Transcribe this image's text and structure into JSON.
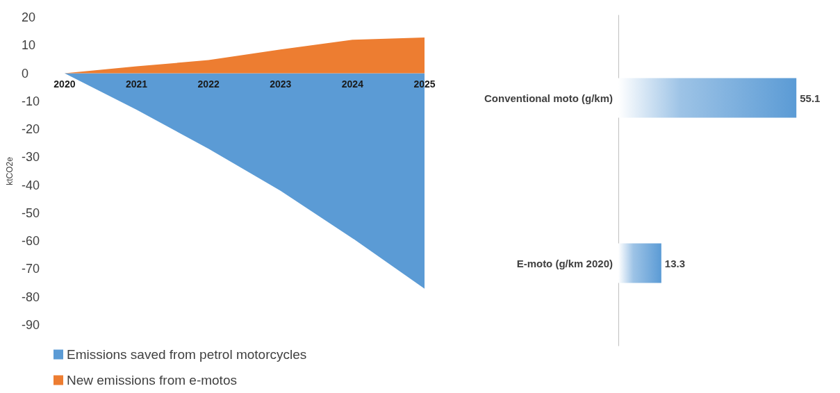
{
  "chart_data": [
    {
      "type": "area",
      "ylabel": "ktCO2e",
      "categories": [
        "2020",
        "2021",
        "2022",
        "2023",
        "2024",
        "2025"
      ],
      "series": [
        {
          "name": "Emissions saved from petrol motorcycles",
          "color": "#5b9bd5",
          "values": [
            0,
            -13,
            -27,
            -42,
            -59,
            -77
          ]
        },
        {
          "name": "New emissions from e-motos",
          "color": "#ed7d31",
          "values": [
            0,
            2.5,
            4.7,
            8.5,
            12,
            12.8
          ]
        }
      ],
      "ylim": [
        -90,
        20
      ],
      "yticks": [
        -90,
        -80,
        -70,
        -60,
        -50,
        -40,
        -30,
        -20,
        -10,
        0,
        10,
        20
      ],
      "grid": false,
      "legend": "bottom left"
    },
    {
      "type": "bar",
      "orientation": "horizontal",
      "categories": [
        "Conventional moto (g/km)",
        "E-moto (g/km 2020)"
      ],
      "values": [
        55.1,
        13.3
      ],
      "color": "#5b9bd5",
      "data_labels": true
    }
  ]
}
